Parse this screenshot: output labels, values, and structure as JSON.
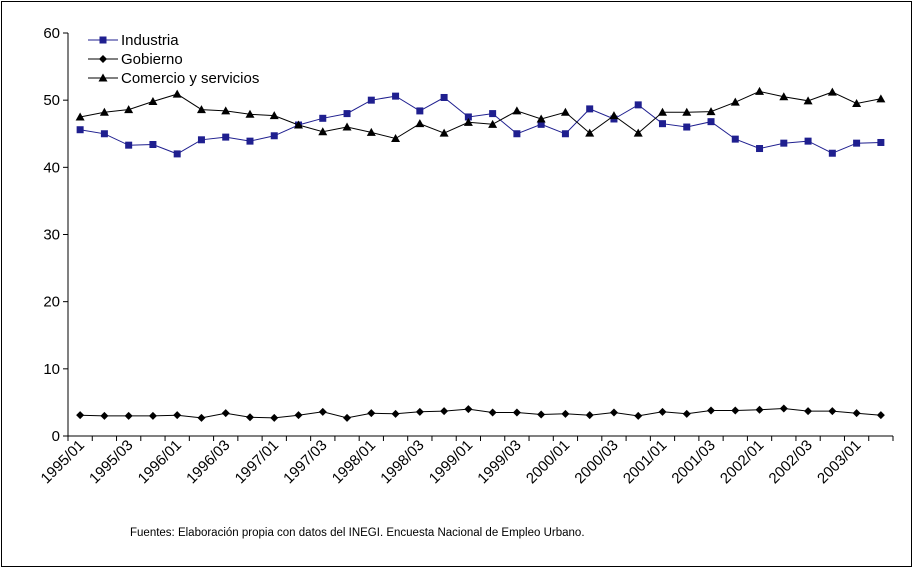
{
  "chart_data": {
    "type": "line",
    "title": "",
    "xlabel": "",
    "ylabel": "",
    "ylim": [
      0,
      60
    ],
    "yticks": [
      0,
      10,
      20,
      30,
      40,
      50,
      60
    ],
    "grid": false,
    "legend_position": "top-left",
    "x": [
      "1995/01",
      "1995/02",
      "1995/03",
      "1995/04",
      "1996/01",
      "1996/02",
      "1996/03",
      "1996/04",
      "1997/01",
      "1997/02",
      "1997/03",
      "1997/04",
      "1998/01",
      "1998/02",
      "1998/03",
      "1998/04",
      "1999/01",
      "1999/02",
      "1999/03",
      "1999/04",
      "2000/01",
      "2000/02",
      "2000/03",
      "2000/04",
      "2001/01",
      "2001/02",
      "2001/03",
      "2001/04",
      "2002/01",
      "2002/02",
      "2002/03",
      "2002/04",
      "2003/01",
      "2003/02"
    ],
    "x_tick_labels": [
      "1995/01",
      "1995/03",
      "1996/01",
      "1996/03",
      "1997/01",
      "1997/03",
      "1998/01",
      "1998/03",
      "1999/01",
      "1999/03",
      "2000/01",
      "2000/03",
      "2001/01",
      "2001/03",
      "2002/01",
      "2002/03",
      "2003/01"
    ],
    "series": [
      {
        "name": "Industria",
        "marker": "square",
        "color": "#1f1f8f",
        "values": [
          45.6,
          45.0,
          43.3,
          43.4,
          42.0,
          44.1,
          44.5,
          43.9,
          44.7,
          46.3,
          47.3,
          48.0,
          50.0,
          50.6,
          48.4,
          50.4,
          47.5,
          48.0,
          45.0,
          46.4,
          45.0,
          48.7,
          47.2,
          49.3,
          46.5,
          46.0,
          46.8,
          44.2,
          42.8,
          43.6,
          43.9,
          42.1,
          43.6,
          43.7
        ]
      },
      {
        "name": "Gobierno",
        "marker": "diamond",
        "color": "#000000",
        "values": [
          3.1,
          3.0,
          3.0,
          3.0,
          3.1,
          2.7,
          3.4,
          2.8,
          2.7,
          3.1,
          3.6,
          2.7,
          3.4,
          3.3,
          3.6,
          3.7,
          4.0,
          3.5,
          3.5,
          3.2,
          3.3,
          3.1,
          3.5,
          3.0,
          3.6,
          3.3,
          3.8,
          3.8,
          3.9,
          4.1,
          3.7,
          3.7,
          3.4,
          3.1
        ]
      },
      {
        "name": "Comercio y servicios",
        "marker": "triangle",
        "color": "#000000",
        "values": [
          47.5,
          48.2,
          48.6,
          49.8,
          50.9,
          48.6,
          48.4,
          47.9,
          47.7,
          46.3,
          45.3,
          46.0,
          45.2,
          44.3,
          46.5,
          45.1,
          46.7,
          46.4,
          48.4,
          47.2,
          48.2,
          45.1,
          47.7,
          45.1,
          48.2,
          48.2,
          48.3,
          49.7,
          51.3,
          50.5,
          49.9,
          51.2,
          49.5,
          50.2
        ]
      }
    ],
    "annotations": [
      "Fuentes: Elaboración propia con datos del INEGI. Encuesta Nacional de Empleo Urbano."
    ]
  }
}
